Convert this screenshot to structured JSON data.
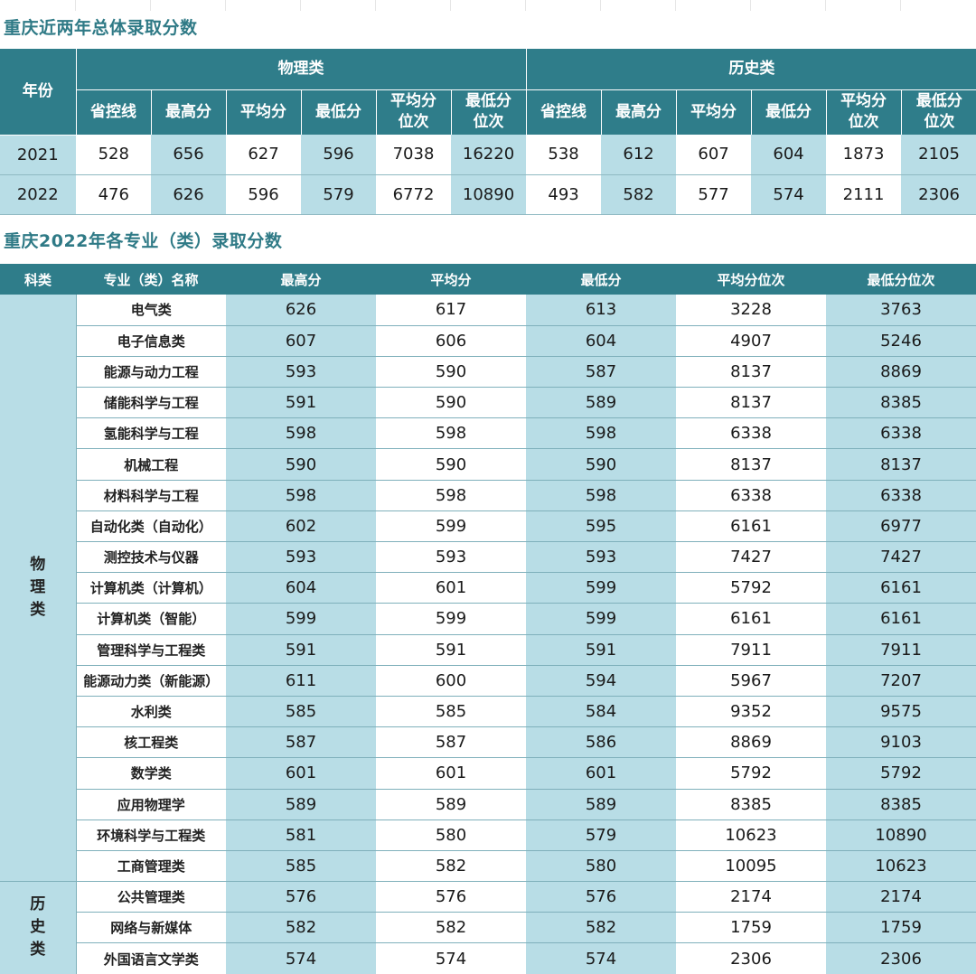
{
  "title1": "重庆近两年总体录取分数",
  "title2": "重庆2022年各专业（类）录取分数",
  "table1": {
    "year_header": "年份",
    "group_physics": "物理类",
    "group_history": "历史类",
    "sub_headers": [
      "省控线",
      "最高分",
      "平均分",
      "最低分",
      "平均分位次",
      "最低分位次"
    ],
    "sub_headers_split": [
      [
        "省控线"
      ],
      [
        "最高分"
      ],
      [
        "平均分"
      ],
      [
        "最低分"
      ],
      [
        "平均分",
        "位次"
      ],
      [
        "最低分",
        "位次"
      ]
    ],
    "rows": [
      {
        "year": "2021",
        "physics": [
          "528",
          "656",
          "627",
          "596",
          "7038",
          "16220"
        ],
        "history": [
          "538",
          "612",
          "607",
          "604",
          "1873",
          "2105"
        ]
      },
      {
        "year": "2022",
        "physics": [
          "476",
          "626",
          "596",
          "579",
          "6772",
          "10890"
        ],
        "history": [
          "493",
          "582",
          "577",
          "574",
          "2111",
          "2306"
        ]
      }
    ]
  },
  "table2": {
    "headers": [
      "科类",
      "专业（类）名称",
      "最高分",
      "平均分",
      "最低分",
      "平均分位次",
      "最低分位次"
    ],
    "categories": [
      {
        "name": "物理类",
        "chars": [
          "物",
          "理",
          "类"
        ],
        "rows": [
          {
            "major": "电气类",
            "values": [
              "626",
              "617",
              "613",
              "3228",
              "3763"
            ]
          },
          {
            "major": "电子信息类",
            "values": [
              "607",
              "606",
              "604",
              "4907",
              "5246"
            ]
          },
          {
            "major": "能源与动力工程",
            "values": [
              "593",
              "590",
              "587",
              "8137",
              "8869"
            ]
          },
          {
            "major": "储能科学与工程",
            "values": [
              "591",
              "590",
              "589",
              "8137",
              "8385"
            ]
          },
          {
            "major": "氢能科学与工程",
            "values": [
              "598",
              "598",
              "598",
              "6338",
              "6338"
            ]
          },
          {
            "major": "机械工程",
            "values": [
              "590",
              "590",
              "590",
              "8137",
              "8137"
            ]
          },
          {
            "major": "材料科学与工程",
            "values": [
              "598",
              "598",
              "598",
              "6338",
              "6338"
            ]
          },
          {
            "major": "自动化类（自动化）",
            "values": [
              "602",
              "599",
              "595",
              "6161",
              "6977"
            ]
          },
          {
            "major": "测控技术与仪器",
            "values": [
              "593",
              "593",
              "593",
              "7427",
              "7427"
            ]
          },
          {
            "major": "计算机类（计算机）",
            "values": [
              "604",
              "601",
              "599",
              "5792",
              "6161"
            ]
          },
          {
            "major": "计算机类（智能）",
            "values": [
              "599",
              "599",
              "599",
              "6161",
              "6161"
            ]
          },
          {
            "major": "管理科学与工程类",
            "values": [
              "591",
              "591",
              "591",
              "7911",
              "7911"
            ]
          },
          {
            "major": "能源动力类（新能源）",
            "values": [
              "611",
              "600",
              "594",
              "5967",
              "7207"
            ]
          },
          {
            "major": "水利类",
            "values": [
              "585",
              "585",
              "584",
              "9352",
              "9575"
            ]
          },
          {
            "major": "核工程类",
            "values": [
              "587",
              "587",
              "586",
              "8869",
              "9103"
            ]
          },
          {
            "major": "数学类",
            "values": [
              "601",
              "601",
              "601",
              "5792",
              "5792"
            ]
          },
          {
            "major": "应用物理学",
            "values": [
              "589",
              "589",
              "589",
              "8385",
              "8385"
            ]
          },
          {
            "major": "环境科学与工程类",
            "values": [
              "581",
              "580",
              "579",
              "10623",
              "10890"
            ]
          },
          {
            "major": "工商管理类",
            "values": [
              "585",
              "582",
              "580",
              "10095",
              "10623"
            ]
          }
        ]
      },
      {
        "name": "历史类",
        "chars": [
          "历",
          "史",
          "类"
        ],
        "rows": [
          {
            "major": "公共管理类",
            "values": [
              "576",
              "576",
              "576",
              "2174",
              "2174"
            ]
          },
          {
            "major": "网络与新媒体",
            "values": [
              "582",
              "582",
              "582",
              "1759",
              "1759"
            ]
          },
          {
            "major": "外国语言文学类",
            "values": [
              "574",
              "574",
              "574",
              "2306",
              "2306"
            ]
          }
        ]
      }
    ]
  },
  "colors": {
    "header_bg": "#2f7d8a",
    "cell_blue": "#b8dde6",
    "title_text": "#2f7a86"
  }
}
